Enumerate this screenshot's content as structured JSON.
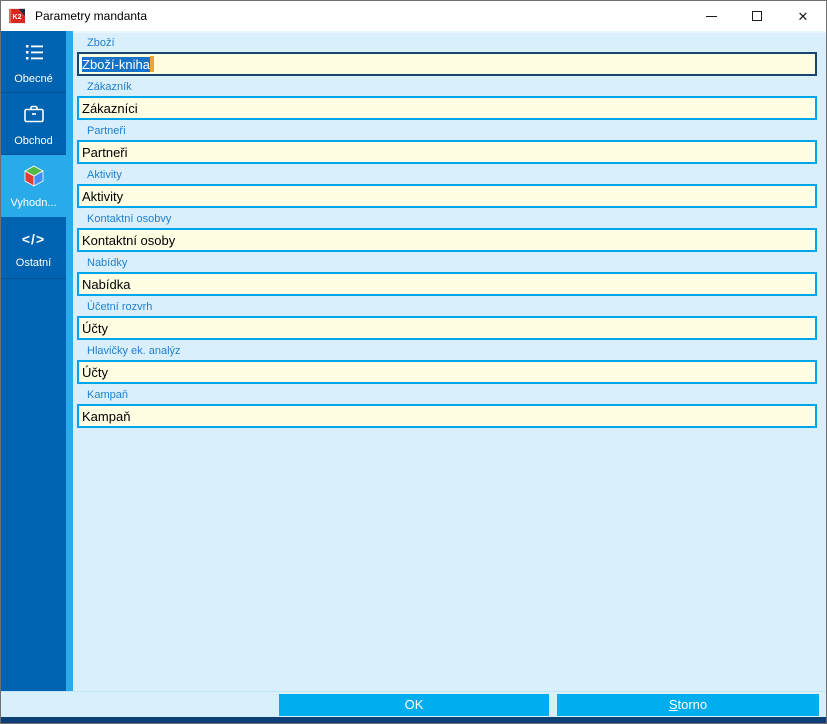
{
  "window": {
    "title": "Parametry mandanta",
    "app_icon": "k2-logo",
    "app_icon_text": "K2",
    "controls": [
      {
        "name": "minimize-button",
        "icon": "minimize-icon"
      },
      {
        "name": "maximize-button",
        "icon": "maximize-icon"
      },
      {
        "name": "close-button",
        "icon": "close-icon",
        "glyph": "✕"
      }
    ]
  },
  "sidebar": {
    "items": [
      {
        "label": "Obecné",
        "icon": "list-icon",
        "selected": false
      },
      {
        "label": "Obchod",
        "icon": "briefcase-icon",
        "selected": false
      },
      {
        "label": "Vyhodn...",
        "icon": "cube-icon",
        "selected": true
      },
      {
        "label": "Ostatní",
        "icon": "code-icon",
        "selected": false
      }
    ]
  },
  "form": {
    "fields": [
      {
        "label": "Zboží",
        "value": "Zboží-kniha",
        "focused": true,
        "text_selected": true
      },
      {
        "label": "Zákazník",
        "value": "Zákazníci",
        "focused": false
      },
      {
        "label": "Partneři",
        "value": "Partneři",
        "focused": false
      },
      {
        "label": "Aktivity",
        "value": "Aktivity",
        "focused": false
      },
      {
        "label": "Kontaktní osobvy",
        "value": "Kontaktní osoby",
        "focused": false
      },
      {
        "label": "Nabídky",
        "value": "Nabídka",
        "focused": false
      },
      {
        "label": "Účetní rozvrh",
        "value": "Účty",
        "focused": false
      },
      {
        "label": "Hlavičky ek. analýz",
        "value": "Účty",
        "focused": false
      },
      {
        "label": "Kampaň",
        "value": "Kampaň",
        "focused": false
      }
    ]
  },
  "footer": {
    "ok_label": "OK",
    "cancel_label": "Storno"
  },
  "colors": {
    "sidebar": "#0063B1",
    "selected_item": "#29ABE9",
    "content_bg": "#D9F0FC",
    "input_bg": "#FFFDE2",
    "input_border": "#00A6EC",
    "focused_input_border": "#17456E",
    "selection_bg": "#1673C8",
    "caret": "#F0A232",
    "label_text": "#1E7FD0",
    "button_bg": "#00AEEF",
    "bottom_strip": "#0E4078",
    "cube_top": "#56B947",
    "cube_left": "#E23B3B",
    "cube_right": "#3F8EF7"
  }
}
